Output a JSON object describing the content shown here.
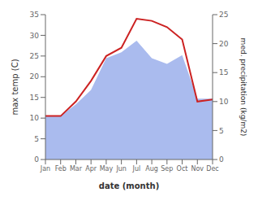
{
  "chart_data": {
    "type": "line",
    "categories": [
      "Jan",
      "Feb",
      "Mar",
      "Apr",
      "May",
      "Jun",
      "Jul",
      "Aug",
      "Sep",
      "Oct",
      "Nov",
      "Dec"
    ],
    "xlabel": "date (month)",
    "ylabel": "max temp (C)",
    "y2label": "med. precipitation (kg/m2)",
    "ylim": [
      0,
      35
    ],
    "yticks": [
      0,
      5,
      10,
      15,
      20,
      25,
      30,
      35
    ],
    "y2lim": [
      0,
      25
    ],
    "y2ticks": [
      0,
      5,
      10,
      15,
      20,
      25
    ],
    "series": [
      {
        "type": "area",
        "axis": "y2",
        "color": "#aabbee",
        "values": [
          7.5,
          7.5,
          9.5,
          12.0,
          17.5,
          18.5,
          20.5,
          17.5,
          16.5,
          18.0,
          10.5,
          10.5
        ]
      },
      {
        "type": "line",
        "color": "#cc2222",
        "values": [
          10.5,
          10.5,
          14.0,
          19.0,
          25.0,
          27.0,
          34.0,
          33.5,
          32.0,
          29.0,
          14.0,
          14.5
        ]
      }
    ]
  }
}
